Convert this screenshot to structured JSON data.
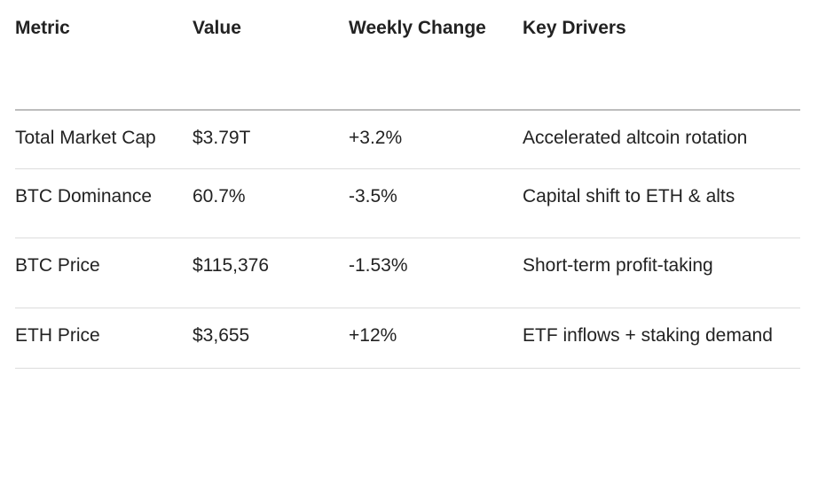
{
  "table": {
    "headers": {
      "metric": "Metric",
      "value": "Value",
      "weekly_change": "Weekly Change",
      "key_drivers": "Key Drivers"
    },
    "rows": [
      {
        "metric": "Total Market Cap",
        "value": "$3.79T",
        "change": "+3.2%",
        "drivers": "Accelerated altcoin rotation"
      },
      {
        "metric": "BTC Dominance",
        "value": "60.7%",
        "change": "-3.5%",
        "drivers": "Capital shift to ETH & alts"
      },
      {
        "metric": "BTC Price",
        "value": "$115,376",
        "change": "-1.53%",
        "drivers": "Short-term profit-taking"
      },
      {
        "metric": "ETH Price",
        "value": "$3,655",
        "change": "+12%",
        "drivers": "ETF inflows + staking demand"
      }
    ]
  }
}
